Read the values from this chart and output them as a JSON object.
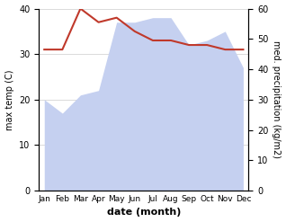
{
  "months": [
    "Jan",
    "Feb",
    "Mar",
    "Apr",
    "May",
    "Jun",
    "Jul",
    "Aug",
    "Sep",
    "Oct",
    "Nov",
    "Dec"
  ],
  "temp_max": [
    31,
    31,
    40,
    37,
    38,
    35,
    33,
    33,
    32,
    32,
    31,
    31
  ],
  "precip_left_scale": [
    20,
    17,
    21,
    22,
    37,
    37,
    38,
    38,
    32,
    33,
    35,
    27
  ],
  "temp_color": "#c0392b",
  "precip_fill_color": "#c5d0f0",
  "left_ylim": [
    0,
    40
  ],
  "right_ylim": [
    0,
    60
  ],
  "left_yticks": [
    0,
    10,
    20,
    30,
    40
  ],
  "right_yticks": [
    0,
    10,
    20,
    30,
    40,
    50,
    60
  ],
  "xlabel": "date (month)",
  "ylabel_left": "max temp (C)",
  "ylabel_right": "med. precipitation (kg/m2)"
}
